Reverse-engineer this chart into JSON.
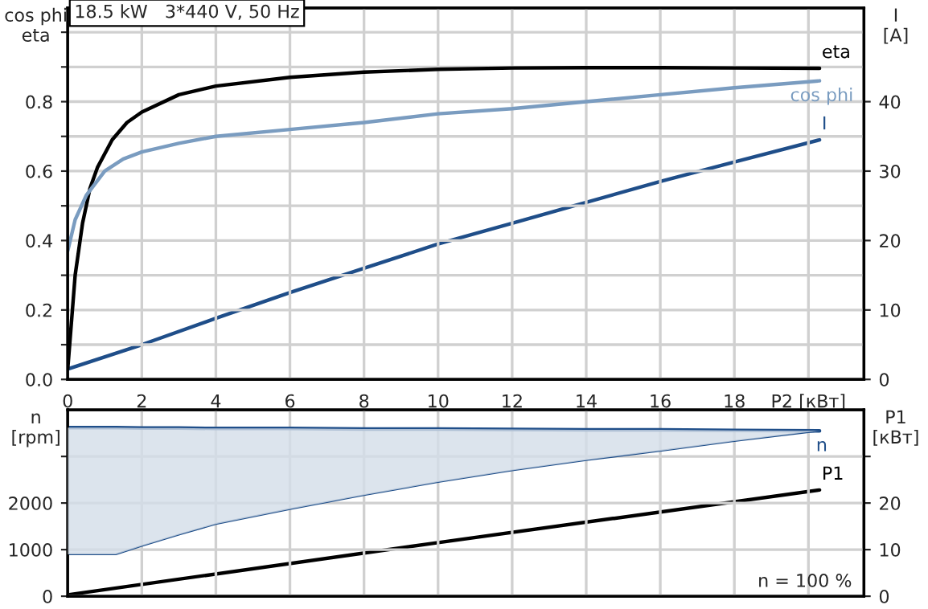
{
  "chart_data": [
    {
      "type": "line",
      "title": "18.5 kW   3*440 V, 50 Hz",
      "ylabel": "cos phi\neta",
      "y2label": "I\n[A]",
      "xlim": [
        0,
        21.5
      ],
      "xticks": [
        0,
        2,
        4,
        6,
        8,
        10,
        12,
        14,
        16,
        18,
        {
          "value": 20,
          "label": "P2 [кВт]"
        }
      ],
      "ylim": [
        0,
        1.07
      ],
      "yticks": [
        {
          "value": 0,
          "label": "0.0"
        },
        {
          "value": 0.1,
          "label": null
        },
        0.2,
        {
          "value": 0.3,
          "label": null
        },
        0.4,
        {
          "value": 0.5,
          "label": null
        },
        0.6,
        {
          "value": 0.7,
          "label": null
        },
        0.8,
        {
          "value": 0.9,
          "label": null
        },
        {
          "value": 1.0,
          "label": null
        }
      ],
      "y2lim": [
        0,
        53.5
      ],
      "y2ticks": [
        0,
        10,
        20,
        30,
        40
      ],
      "grid": true,
      "legend": false,
      "series": [
        {
          "name": "eta",
          "color": "#000000",
          "x": [
            0,
            0.2,
            0.4,
            0.6,
            0.8,
            1.2,
            1.6,
            2,
            3,
            4,
            6,
            8,
            10,
            12,
            14,
            16,
            18,
            20.3
          ],
          "values": [
            0.03,
            0.3,
            0.45,
            0.55,
            0.61,
            0.69,
            0.74,
            0.77,
            0.82,
            0.845,
            0.87,
            0.885,
            0.893,
            0.897,
            0.898,
            0.898,
            0.897,
            0.896
          ]
        },
        {
          "name": "cos phi",
          "color": "#7a9cc0",
          "x": [
            0,
            0.2,
            0.5,
            1,
            1.5,
            2,
            3,
            4,
            6,
            8,
            10,
            12,
            14,
            16,
            18,
            20.3
          ],
          "values": [
            0.37,
            0.46,
            0.53,
            0.6,
            0.635,
            0.655,
            0.68,
            0.7,
            0.72,
            0.74,
            0.765,
            0.78,
            0.8,
            0.82,
            0.84,
            0.86
          ]
        },
        {
          "name": "I",
          "color": "#1f4e89",
          "axis": "y2",
          "x": [
            0,
            2,
            4,
            6,
            8,
            10,
            12,
            14,
            16,
            18,
            20.3
          ],
          "values": [
            1.5,
            5,
            8.8,
            12.5,
            16,
            19.5,
            22.5,
            25.5,
            28.5,
            31.3,
            34.5
          ]
        }
      ]
    },
    {
      "type": "line",
      "ylabel": "n\n[rpm]",
      "y2label": "P1\n[кВт]",
      "annotations": [
        "n = 100 %"
      ],
      "xlim": [
        0,
        21.5
      ],
      "xticks": [
        {
          "value": 0,
          "label": null
        },
        {
          "value": 2,
          "label": null
        },
        {
          "value": 4,
          "label": null
        },
        {
          "value": 6,
          "label": null
        },
        {
          "value": 8,
          "label": null
        },
        {
          "value": 10,
          "label": null
        },
        {
          "value": 12,
          "label": null
        },
        {
          "value": 14,
          "label": null
        },
        {
          "value": 16,
          "label": null
        },
        {
          "value": 18,
          "label": null
        },
        {
          "value": 20,
          "label": null
        }
      ],
      "ylim": [
        0,
        4000
      ],
      "yticks": [
        0,
        1000,
        2000,
        {
          "value": 3000,
          "label": null
        }
      ],
      "y2lim": [
        0,
        40
      ],
      "y2ticks": [
        0,
        10,
        20,
        {
          "value": 30,
          "label": null
        }
      ],
      "grid": true,
      "legend": false,
      "tick_labels": "y",
      "series": [
        {
          "name": "n",
          "color": "#1f4e89",
          "x": [
            0,
            1.3,
            2,
            3,
            4,
            6,
            8,
            10,
            12,
            14,
            16,
            18,
            20.3
          ],
          "values": [
            3620,
            3620,
            3610,
            3610,
            3600,
            3600,
            3590,
            3590,
            3580,
            3570,
            3570,
            3560,
            3550
          ],
          "lower": [
            900,
            900,
            1080,
            1320,
            1550,
            1870,
            2170,
            2450,
            2700,
            2920,
            3120,
            3330,
            3550
          ],
          "upper": [
            3620,
            3620,
            3610,
            3610,
            3600,
            3600,
            3590,
            3590,
            3580,
            3570,
            3570,
            3560,
            3550
          ]
        },
        {
          "color": "#1f4e89",
          "x": [
            0,
            1.3,
            2,
            3,
            4,
            6,
            8,
            10,
            12,
            14,
            16,
            18,
            20.3
          ],
          "values": [
            900,
            900,
            1080,
            1320,
            1550,
            1870,
            2170,
            2450,
            2700,
            2920,
            3120,
            3330,
            3550
          ]
        },
        {
          "name": "P1",
          "color": "#000000",
          "axis": "y2",
          "x": [
            0,
            10,
            20.3
          ],
          "values": [
            0.3,
            11.5,
            22.8
          ]
        }
      ]
    }
  ]
}
